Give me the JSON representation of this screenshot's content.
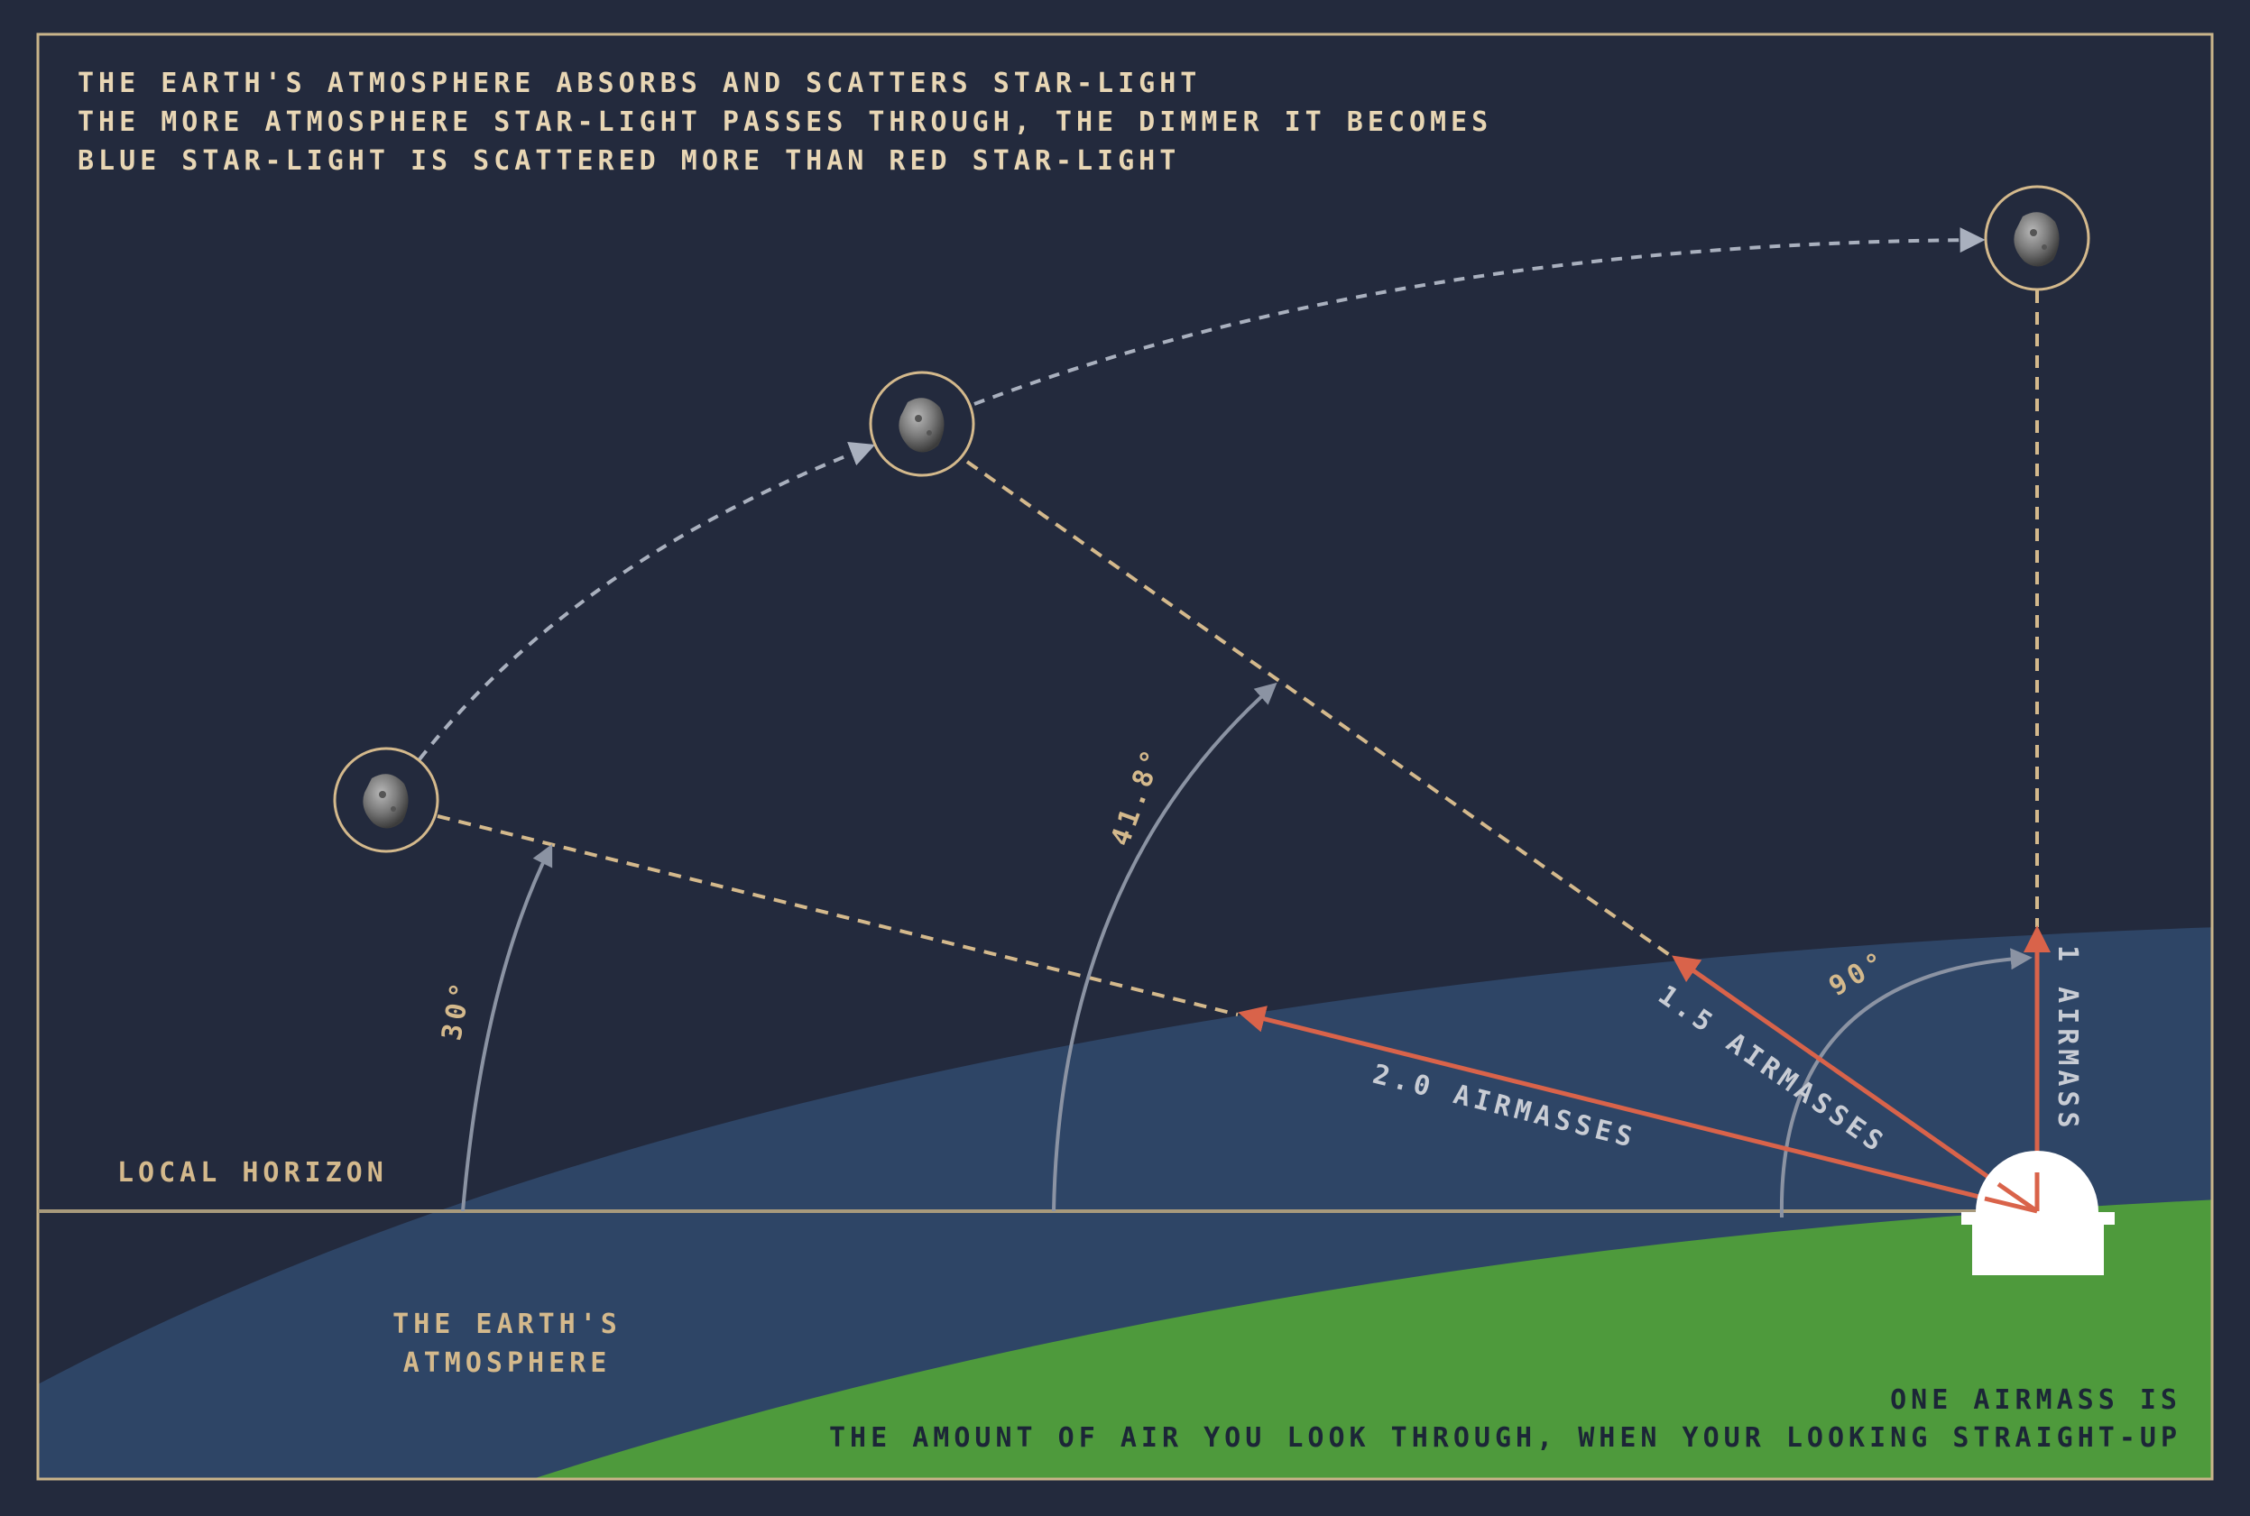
{
  "intro": {
    "line1": "THE EARTH'S ATMOSPHERE ABSORBS AND SCATTERS STAR-LIGHT",
    "line2": "THE MORE ATMOSPHERE STAR-LIGHT PASSES THROUGH, THE DIMMER IT BECOMES",
    "line3": "BLUE STAR-LIGHT IS SCATTERED MORE THAN RED STAR-LIGHT"
  },
  "labels": {
    "horizon": "LOCAL HORIZON",
    "atmosphere1": "THE EARTH'S",
    "atmosphere2": "ATMOSPHERE"
  },
  "angles": {
    "a30": "30°",
    "a41": "41.8°",
    "a90": "90°"
  },
  "airmass": {
    "am2": "2.0 AIRMASSES",
    "am15": "1.5 AIRMASSES",
    "am1": "1 AIRMASS"
  },
  "footer": {
    "line1": "ONE AIRMASS IS",
    "line2": "THE AMOUNT OF AIR YOU LOOK THROUGH, WHEN YOUR LOOKING STRAIGHT-UP"
  },
  "colors": {
    "background": "#232a3d",
    "atmosphere": "#2e4566",
    "ground": "#4e9a3c",
    "tan": "#d4b98c",
    "red_arrow": "#d9634a",
    "gray_arc": "#8b93a3",
    "dark_text": "#1c2637"
  },
  "icons": [
    "asteroid-icon",
    "observatory-icon"
  ]
}
